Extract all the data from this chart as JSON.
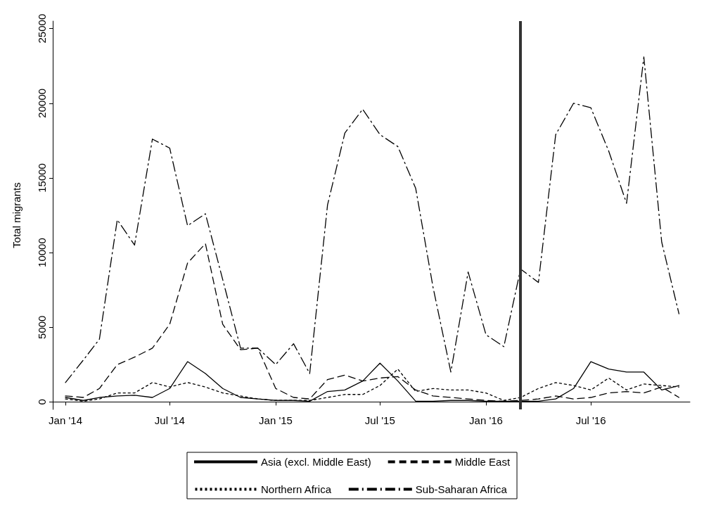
{
  "chart_data": {
    "type": "line",
    "ylabel": "Total migrants",
    "x": [
      "2014-01",
      "2014-02",
      "2014-03",
      "2014-04",
      "2014-05",
      "2014-06",
      "2014-07",
      "2014-08",
      "2014-09",
      "2014-10",
      "2014-11",
      "2014-12",
      "2015-01",
      "2015-02",
      "2015-03",
      "2015-04",
      "2015-05",
      "2015-06",
      "2015-07",
      "2015-08",
      "2015-09",
      "2015-10",
      "2015-11",
      "2015-12",
      "2016-01",
      "2016-02",
      "2016-03",
      "2016-04",
      "2016-05",
      "2016-06",
      "2016-07",
      "2016-08",
      "2016-09",
      "2016-10",
      "2016-11",
      "2016-12"
    ],
    "series": [
      {
        "name": "Asia (excl. Middle East)",
        "color": "#000000",
        "line_style": "solid",
        "values": [
          300,
          100,
          300,
          400,
          450,
          300,
          900,
          2700,
          1900,
          900,
          300,
          200,
          100,
          100,
          50,
          700,
          800,
          1400,
          2600,
          1400,
          50,
          50,
          100,
          100,
          50,
          50,
          50,
          50,
          200,
          900,
          2700,
          2200,
          2000,
          2000,
          800,
          1100
        ]
      },
      {
        "name": "Middle East",
        "color": "#000000",
        "line_style": "dashed",
        "values": [
          400,
          300,
          900,
          2500,
          3000,
          3600,
          5200,
          9300,
          10600,
          5200,
          3500,
          3600,
          900,
          300,
          200,
          1500,
          1800,
          1400,
          1600,
          1700,
          800,
          400,
          300,
          200,
          100,
          50,
          100,
          200,
          400,
          200,
          300,
          600,
          700,
          600,
          1000,
          300
        ]
      },
      {
        "name": "Northern Africa",
        "color": "#000000",
        "line_style": "dotted",
        "values": [
          200,
          50,
          200,
          600,
          600,
          1300,
          1000,
          1300,
          1000,
          600,
          400,
          200,
          100,
          100,
          100,
          300,
          500,
          500,
          1100,
          2200,
          700,
          900,
          800,
          800,
          600,
          100,
          300,
          900,
          1300,
          1100,
          800,
          1600,
          800,
          1200,
          1100,
          1000
        ]
      },
      {
        "name": "Sub-Saharan Africa",
        "color": "#000000",
        "line_style": "dashdot",
        "values": [
          1300,
          2800,
          4200,
          12200,
          10500,
          17600,
          17000,
          11800,
          12600,
          8200,
          3600,
          3600,
          2500,
          3900,
          1900,
          13200,
          18000,
          19600,
          17900,
          17100,
          14300,
          7700,
          2000,
          8700,
          4500,
          3700,
          8900,
          8000,
          17900,
          20000,
          19700,
          16800,
          13300,
          23100,
          10700,
          5900
        ]
      }
    ],
    "xlim": [
      "2013-12-10",
      "2016-12-20"
    ],
    "xticks": [
      {
        "value": "2014-01",
        "label": "Jan '14"
      },
      {
        "value": "2014-07",
        "label": "Jul '14"
      },
      {
        "value": "2015-01",
        "label": "Jan '15"
      },
      {
        "value": "2015-07",
        "label": "Jul '15"
      },
      {
        "value": "2016-01",
        "label": "Jan '16"
      },
      {
        "value": "2016-07",
        "label": "Jul '16"
      }
    ],
    "ylim": [
      -500,
      25500
    ],
    "yticks": [
      0,
      5000,
      10000,
      15000,
      20000,
      25000
    ],
    "ref_lines": [
      {
        "axis": "x",
        "value": "2016-03",
        "color": "#333333"
      }
    ],
    "grid": false,
    "legend": "bottom"
  }
}
